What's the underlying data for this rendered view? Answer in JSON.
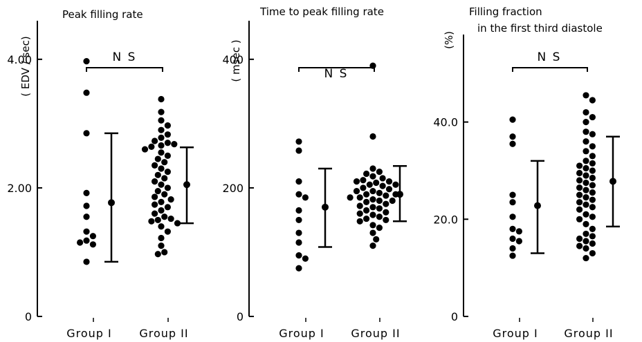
{
  "chart_data": [
    {
      "type": "scatter",
      "title": "Peak filling rate",
      "ylabel": "( EDV / sec)",
      "ylim": [
        0,
        4.6
      ],
      "yticks": [
        {
          "value": 0,
          "label": "0"
        },
        {
          "value": 2,
          "label": "2.00"
        },
        {
          "value": 4,
          "label": "4.00"
        }
      ],
      "categories": [
        "Group I",
        "Group II"
      ],
      "significance": "N S",
      "series": [
        {
          "values": [
            3.97,
            3.48,
            2.85,
            1.92,
            1.72,
            1.55,
            1.32,
            1.25,
            1.18,
            1.15,
            1.12,
            0.85
          ]
        },
        {
          "values": [
            3.38,
            3.18,
            3.05,
            2.97,
            2.9,
            2.83,
            2.78,
            2.73,
            2.7,
            2.68,
            2.66,
            2.64,
            2.6,
            2.55,
            2.5,
            2.45,
            2.4,
            2.35,
            2.3,
            2.25,
            2.2,
            2.15,
            2.1,
            2.05,
            2.0,
            1.95,
            1.9,
            1.86,
            1.82,
            1.78,
            1.74,
            1.7,
            1.65,
            1.6,
            1.55,
            1.52,
            1.5,
            1.48,
            1.45,
            1.4,
            1.32,
            1.22,
            1.1,
            1.0,
            0.97
          ]
        }
      ],
      "mean_sd": [
        {
          "mean": 1.77,
          "low": 0.85,
          "high": 2.85
        },
        {
          "mean": 2.05,
          "low": 1.45,
          "high": 2.63
        }
      ]
    },
    {
      "type": "scatter",
      "title": "Time to peak filling rate",
      "ylabel": "( msec )",
      "ylim": [
        0,
        460
      ],
      "yticks": [
        {
          "value": 0,
          "label": "0"
        },
        {
          "value": 200,
          "label": "200"
        },
        {
          "value": 400,
          "label": "400"
        }
      ],
      "categories": [
        "Group I",
        "Group II"
      ],
      "significance": "N S",
      "series": [
        {
          "values": [
            272,
            258,
            210,
            190,
            185,
            165,
            150,
            130,
            115,
            95,
            90,
            75
          ]
        },
        {
          "values": [
            390,
            280,
            230,
            225,
            222,
            218,
            215,
            212,
            210,
            210,
            208,
            205,
            205,
            203,
            200,
            198,
            195,
            195,
            192,
            190,
            190,
            188,
            185,
            185,
            182,
            180,
            180,
            178,
            175,
            172,
            170,
            168,
            165,
            162,
            160,
            158,
            155,
            152,
            150,
            148,
            142,
            138,
            130,
            120,
            110
          ]
        }
      ],
      "mean_sd": [
        {
          "mean": 170,
          "low": 108,
          "high": 230
        },
        {
          "mean": 190,
          "low": 148,
          "high": 234
        }
      ]
    },
    {
      "type": "scatter",
      "title": "Filling fraction",
      "subtitle": "in the first third diastole",
      "ylabel": "(%)",
      "ylim": [
        0,
        58
      ],
      "yticks": [
        {
          "value": 0,
          "label": "0"
        },
        {
          "value": 20,
          "label": "20.0"
        },
        {
          "value": 40,
          "label": "40.0"
        }
      ],
      "categories": [
        "Group I",
        "Group II"
      ],
      "significance": "N S",
      "series": [
        {
          "values": [
            40.5,
            37.0,
            35.5,
            25.0,
            23.5,
            20.5,
            18.0,
            17.5,
            16.0,
            15.5,
            14.0,
            12.5
          ]
        },
        {
          "values": [
            45.5,
            44.5,
            42.0,
            41.0,
            40.0,
            38.0,
            37.5,
            36.0,
            35.0,
            34.0,
            33.0,
            32.0,
            31.5,
            31.0,
            30.5,
            30.0,
            29.5,
            29.0,
            28.5,
            28.0,
            27.5,
            27.0,
            26.5,
            26.0,
            25.5,
            25.0,
            24.5,
            24.0,
            23.5,
            23.0,
            22.5,
            22.0,
            21.0,
            20.5,
            20.0,
            19.0,
            18.0,
            17.0,
            16.5,
            16.0,
            15.5,
            15.0,
            14.5,
            14.0,
            13.0,
            12.0
          ]
        }
      ],
      "mean_sd": [
        {
          "mean": 22.8,
          "low": 13.0,
          "high": 32.0
        },
        {
          "mean": 27.8,
          "low": 18.5,
          "high": 37.0
        }
      ]
    }
  ]
}
